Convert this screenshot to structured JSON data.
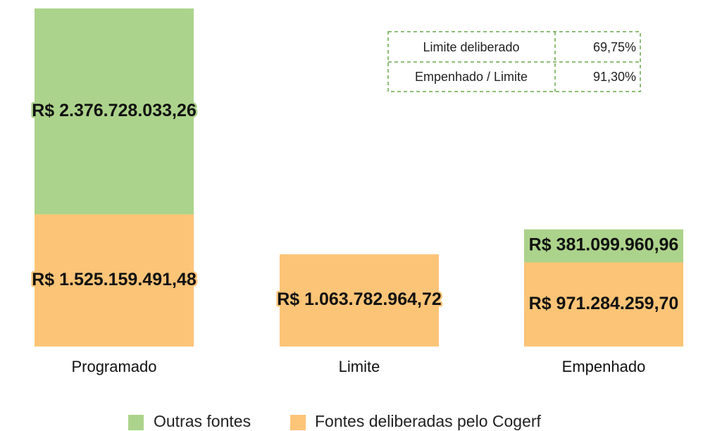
{
  "chart_data": {
    "type": "stacked_bar",
    "categories": [
      "Programado",
      "Limite",
      "Empenhado"
    ],
    "series": [
      {
        "name": "Fontes deliberadas pelo Cogerf",
        "color": "#fcc477",
        "values": [
          1525159491.48,
          1063782964.72,
          971284259.7
        ],
        "value_labels": [
          "R$ 1.525.159.491,48",
          "R$ 1.063.782.964,72",
          "R$ 971.284.259,70"
        ]
      },
      {
        "name": "Outras fontes",
        "color": "#acd38b",
        "values": [
          2376728033.26,
          null,
          381099960.96
        ],
        "value_labels": [
          "R$ 2.376.728.033,26",
          null,
          "R$ 381.099.960,96"
        ]
      }
    ],
    "legend_order": [
      1,
      0
    ],
    "table": {
      "rows": [
        [
          "Limite deliberado",
          "69,75%"
        ],
        [
          "Empenhado / Limite",
          "91,30%"
        ]
      ]
    }
  }
}
